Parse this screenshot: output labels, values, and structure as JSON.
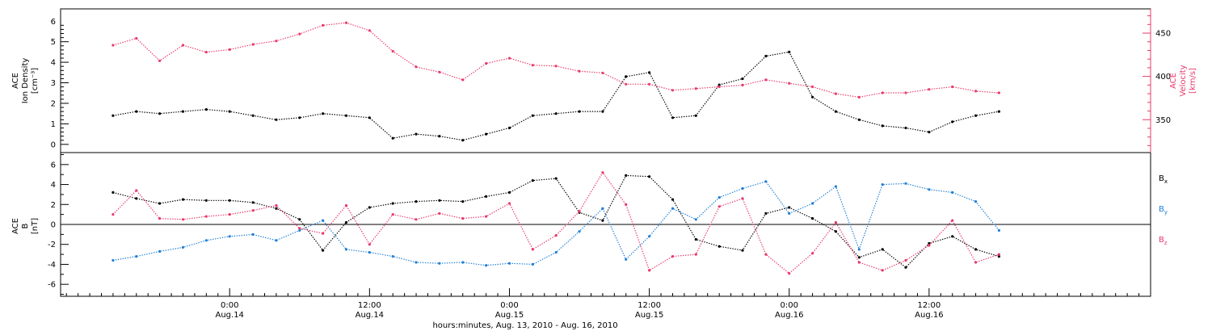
{
  "chart_data": [
    {
      "type": "scatter",
      "panel": "top",
      "ylabel_left": [
        "ACE",
        "Ion Density",
        "[cm⁻³]"
      ],
      "ylabel_right": [
        "ACE",
        "Velocity",
        "[km/s]"
      ],
      "ylim_left": [
        -0.4,
        6.6
      ],
      "ylim_right": [
        312,
        478
      ],
      "yticks_left": [
        "0",
        "1",
        "2",
        "3",
        "4",
        "5",
        "6"
      ],
      "yticks_right": [
        "350",
        "400",
        "450"
      ],
      "right_axis_color": "#e8396a",
      "series": [
        {
          "name": "",
          "axis": "left",
          "color": "#000000",
          "x": [
            -10,
            -8,
            -6,
            -4,
            -2,
            0,
            2,
            4,
            6,
            8,
            10,
            12,
            14,
            16,
            18,
            20,
            22,
            24,
            26,
            28,
            30,
            32,
            34,
            36,
            38,
            40,
            42,
            44,
            46,
            48,
            50,
            52,
            54,
            56,
            58,
            60,
            62,
            64,
            66
          ],
          "y": [
            1.4,
            1.6,
            1.5,
            1.6,
            1.7,
            1.6,
            1.4,
            1.2,
            1.3,
            1.5,
            1.4,
            1.3,
            0.3,
            0.5,
            0.4,
            0.2,
            0.5,
            0.8,
            1.4,
            1.5,
            1.6,
            1.6,
            3.3,
            3.5,
            1.3,
            1.4,
            2.9,
            3.2,
            4.3,
            4.5,
            2.3,
            1.6,
            1.2,
            0.9,
            0.8,
            0.6,
            1.1,
            1.4,
            1.6
          ]
        },
        {
          "name": "",
          "axis": "right",
          "color": "#e8396a",
          "x": [
            -10,
            -8,
            -6,
            -4,
            -2,
            0,
            2,
            4,
            6,
            8,
            10,
            12,
            14,
            16,
            18,
            20,
            22,
            24,
            26,
            28,
            30,
            32,
            34,
            36,
            38,
            40,
            42,
            44,
            46,
            48,
            50,
            52,
            54,
            56,
            58,
            60,
            62,
            64,
            66
          ],
          "y": [
            436,
            444,
            418,
            436,
            428,
            431,
            437,
            441,
            449,
            459,
            462,
            453,
            429,
            411,
            405,
            396,
            415,
            421,
            413,
            412,
            406,
            404,
            391,
            391,
            384,
            386,
            388,
            390,
            396,
            392,
            388,
            380,
            376,
            381,
            381,
            385,
            388,
            383,
            381
          ]
        }
      ]
    },
    {
      "type": "scatter",
      "panel": "bottom",
      "ylabel_left": [
        "ACE",
        "B",
        "[nT]"
      ],
      "ylim": [
        -7.2,
        7.2
      ],
      "yticks": [
        "-6",
        "-4",
        "-2",
        "0",
        "2",
        "4",
        "6"
      ],
      "legend_position": "right",
      "series": [
        {
          "name": "Bx",
          "label_main": "B",
          "label_sub": "x",
          "color": "#000000",
          "x": [
            -10,
            -8,
            -6,
            -4,
            -2,
            0,
            2,
            4,
            6,
            8,
            10,
            12,
            14,
            16,
            18,
            20,
            22,
            24,
            26,
            28,
            30,
            32,
            34,
            36,
            38,
            40,
            42,
            44,
            46,
            48,
            50,
            52,
            54,
            56,
            58,
            60,
            62,
            64,
            66
          ],
          "y": [
            3.2,
            2.6,
            2.1,
            2.5,
            2.4,
            2.4,
            2.2,
            1.6,
            0.5,
            -2.6,
            0.2,
            1.7,
            2.1,
            2.3,
            2.4,
            2.3,
            2.8,
            3.2,
            4.4,
            4.6,
            1.2,
            0.4,
            4.9,
            4.8,
            2.5,
            -1.5,
            -2.2,
            -2.6,
            1.1,
            1.7,
            0.6,
            -0.7,
            -3.3,
            -2.5,
            -4.3,
            -1.9,
            -1.2,
            -2.5,
            -3.2
          ]
        },
        {
          "name": "By",
          "label_main": "B",
          "label_sub": "y",
          "color": "#1f7fd6",
          "x": [
            -10,
            -8,
            -6,
            -4,
            -2,
            0,
            2,
            4,
            6,
            8,
            10,
            12,
            14,
            16,
            18,
            20,
            22,
            24,
            26,
            28,
            30,
            32,
            34,
            36,
            38,
            40,
            42,
            44,
            46,
            48,
            50,
            52,
            54,
            56,
            58,
            60,
            62,
            64,
            66
          ],
          "y": [
            -3.6,
            -3.2,
            -2.7,
            -2.3,
            -1.6,
            -1.2,
            -1.0,
            -1.6,
            -0.6,
            0.4,
            -2.5,
            -2.8,
            -3.2,
            -3.8,
            -3.9,
            -3.8,
            -4.1,
            -3.9,
            -4.0,
            -2.8,
            -0.7,
            1.6,
            -3.5,
            -1.2,
            1.6,
            0.5,
            2.7,
            3.6,
            4.3,
            1.1,
            2.1,
            3.8,
            -2.5,
            4.0,
            4.1,
            3.5,
            3.2,
            2.3,
            -0.6
          ]
        },
        {
          "name": "Bz",
          "label_main": "B",
          "label_sub": "z",
          "color": "#e8396a",
          "x": [
            -10,
            -8,
            -6,
            -4,
            -2,
            0,
            2,
            4,
            6,
            8,
            10,
            12,
            14,
            16,
            18,
            20,
            22,
            24,
            26,
            28,
            30,
            32,
            34,
            36,
            38,
            40,
            42,
            44,
            46,
            48,
            50,
            52,
            54,
            56,
            58,
            60,
            62,
            64,
            66
          ],
          "y": [
            1.0,
            3.4,
            0.6,
            0.5,
            0.8,
            1.0,
            1.4,
            1.9,
            -0.4,
            -0.9,
            1.9,
            -2.0,
            1.0,
            0.5,
            1.1,
            0.6,
            0.8,
            2.1,
            -2.5,
            -1.1,
            1.3,
            5.2,
            2.0,
            -4.6,
            -3.2,
            -3.0,
            1.8,
            2.6,
            -3.0,
            -4.9,
            -2.9,
            0.2,
            -3.8,
            -4.6,
            -3.6,
            -2.1,
            0.4,
            -3.8,
            -3.0
          ]
        }
      ]
    }
  ],
  "x_axis": {
    "xlim": [
      -14.5,
      79
    ],
    "major_ticks": [
      0,
      12,
      24,
      36,
      48,
      60
    ],
    "time_labels": [
      "0:00",
      "12:00",
      "0:00",
      "12:00",
      "0:00",
      "12:00"
    ],
    "date_labels": [
      "Aug.14",
      "Aug.14",
      "Aug.15",
      "Aug.15",
      "Aug.16",
      "Aug.16"
    ],
    "xlabel": "hours:minutes, Aug. 13, 2010 - Aug. 16, 2010"
  }
}
